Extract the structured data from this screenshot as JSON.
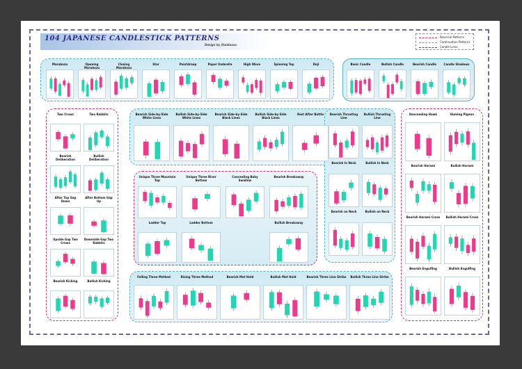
{
  "poster": {
    "title": "104 JAPANESE CANDLESTICK PATTERNS",
    "subtitle": "Design by Studioxxx"
  },
  "legend": [
    {
      "label": "Reversal Patterns",
      "color": "#d1336e"
    },
    {
      "label": "Continuation Patterns",
      "color": "#4fb4c3"
    },
    {
      "label": "Candle Lines",
      "color": "#4a4a4a"
    }
  ],
  "colors": {
    "bull": "#22d6b4",
    "bear": "#ee3a8c"
  },
  "top_singles": [
    "Marubozu",
    "Opening Marubozu",
    "Closing Marubozu",
    "Star",
    "Paintdraap",
    "Paper Umbrella",
    "High Wave",
    "Spinning Top",
    "Doji"
  ],
  "top_candles": [
    "Basic Candle",
    "Bullish Candle",
    "Bearish Candle",
    "Candle Shadows"
  ],
  "left_rev": [
    "Two Crows",
    "Two Rabbits",
    "Bearish Deliberation",
    "Bullish Deliberation",
    "After Top Gap Down",
    "After Bottom Gap Up",
    "Upside Gap Two Crows",
    "Downside Gap Two Rabbits",
    "Bearish Kicking",
    "Bullish Kicking"
  ],
  "side_cont": [
    "Bearish Side-by-Side White Lines",
    "Bullish Side-by-Side White Lines",
    "Bearish Side-by-Side Black Lines",
    "Bullish Side-by-Side Black Lines",
    "Rest After Battle"
  ],
  "mid_rev": [
    "Unique Three Mountain Top",
    "Unique Three River Bottom",
    "Concealing Baby Swallow",
    "Bearish Breakaway",
    "Ladder Top",
    "Ladder Bottom",
    "Bullish Breakaway"
  ],
  "thrust_cont": [
    "Bearish Thrusting Line",
    "Bullish Thrusting Line",
    "Bearish In Neck",
    "Bullish In Neck",
    "Bearish on Neck",
    "Bullish on Neck"
  ],
  "right_rev": [
    "Descending Hawk",
    "Homing Pigeon",
    "Bearish Harami",
    "Bullish Harami",
    "Bearish Harami Cross",
    "Bullish Harami Cross",
    "Bearish Engulfing",
    "Bullish Engulfing"
  ],
  "bottom_cont": [
    "Falling Three Method",
    "Rising Three Method",
    "Bearish Mat Hold",
    "Bullish Mat Hold",
    "Bearish Three Line Strike",
    "Bullish Three Line Strike"
  ]
}
